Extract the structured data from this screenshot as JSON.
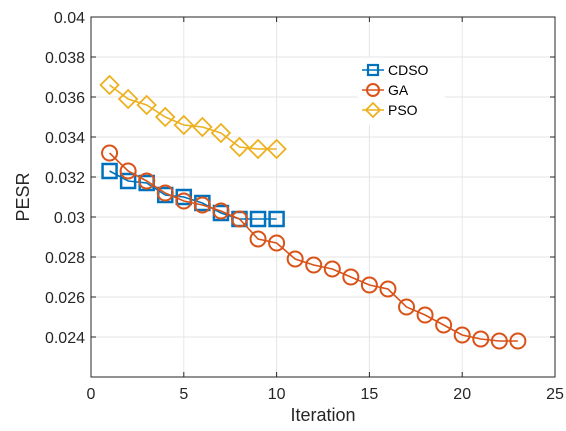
{
  "chart_data": {
    "type": "line",
    "title": "",
    "xlabel": "Iteration",
    "ylabel": "PESR",
    "xlim": [
      0,
      25
    ],
    "ylim": [
      0.022,
      0.04
    ],
    "xticks": [
      0,
      5,
      10,
      15,
      20,
      25
    ],
    "xtick_labels": [
      "0",
      "5",
      "10",
      "15",
      "20",
      "25"
    ],
    "yticks": [
      0.024,
      0.026,
      0.028,
      0.03,
      0.032,
      0.034,
      0.036,
      0.038,
      0.04
    ],
    "ytick_labels": [
      "0.024",
      "0.026",
      "0.028",
      "0.03",
      "0.032",
      "0.034",
      "0.036",
      "0.038",
      "0.04"
    ],
    "grid": true,
    "legend_position": "upper-middle-right",
    "series": [
      {
        "name": "CDSO",
        "marker": "square",
        "color": "#0072BD",
        "x": [
          1,
          2,
          3,
          4,
          5,
          6,
          7,
          8,
          9,
          10
        ],
        "y": [
          0.0323,
          0.0318,
          0.0317,
          0.0311,
          0.031,
          0.0307,
          0.0302,
          0.0299,
          0.0299,
          0.0299
        ]
      },
      {
        "name": "GA",
        "marker": "circle",
        "color": "#D95319",
        "x": [
          1,
          2,
          3,
          4,
          5,
          6,
          7,
          8,
          9,
          10,
          11,
          12,
          13,
          14,
          15,
          16,
          17,
          18,
          19,
          20,
          21,
          22,
          23
        ],
        "y": [
          0.0332,
          0.0323,
          0.0318,
          0.0312,
          0.0308,
          0.0306,
          0.0303,
          0.0299,
          0.0289,
          0.0287,
          0.0279,
          0.0276,
          0.0274,
          0.027,
          0.0266,
          0.0264,
          0.0255,
          0.0251,
          0.0246,
          0.0241,
          0.0239,
          0.0238,
          0.0238
        ]
      },
      {
        "name": "PSO",
        "marker": "diamond",
        "color": "#EDB120",
        "x": [
          1,
          2,
          3,
          4,
          5,
          6,
          7,
          8,
          9,
          10
        ],
        "y": [
          0.0366,
          0.0359,
          0.0356,
          0.035,
          0.0346,
          0.0345,
          0.0342,
          0.0335,
          0.0334,
          0.0334
        ]
      }
    ]
  }
}
